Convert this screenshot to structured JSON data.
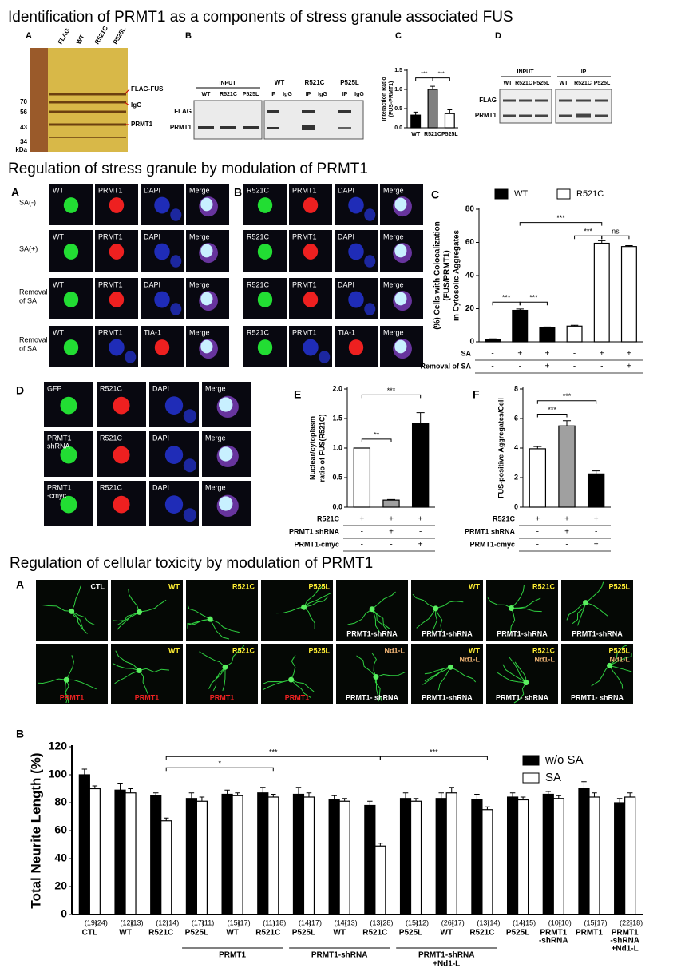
{
  "section1": {
    "title": "Identification of PRMT1 as a components of stress granule associated FUS",
    "A": {
      "label": "A",
      "lanes": [
        "FLAG",
        "WT",
        "R521C",
        "P525L"
      ],
      "markers": [
        "70",
        "56",
        "43",
        "34",
        "kDa"
      ],
      "bands": [
        "FLAG-FUS",
        "IgG",
        "PRMT1"
      ]
    },
    "B": {
      "label": "B",
      "input": "INPUT",
      "input_lanes": [
        "WT",
        "R521C",
        "P525L"
      ],
      "ip_groups": [
        "WT",
        "R521C",
        "P525L"
      ],
      "ip_lanes": [
        "IP",
        "IgG",
        "IP",
        "IgG",
        "IP",
        "IgG"
      ],
      "rows": [
        "FLAG",
        "PRMT1"
      ]
    },
    "D": {
      "label": "D",
      "input": "INPUT",
      "ip": "IP",
      "input_lanes": [
        "WT",
        "R521C",
        "P525L"
      ],
      "ip_lanes": [
        "WT",
        "R521C",
        "P525L"
      ],
      "rows": [
        "FLAG",
        "PRMT1"
      ]
    }
  },
  "section2": {
    "title": "Regulation of stress granule by modulation of PRMT1",
    "A": {
      "label": "A",
      "row_labels": [
        [
          "SA(-)"
        ],
        [
          "SA(+)"
        ],
        [
          "Removal",
          "of SA"
        ],
        [
          "Removal",
          "of SA"
        ]
      ],
      "cells": [
        [
          "WT",
          "PRMT1",
          "DAPI",
          "Merge"
        ],
        [
          "WT",
          "PRMT1",
          "DAPI",
          "Merge"
        ],
        [
          "WT",
          "PRMT1",
          "DAPI",
          "Merge"
        ],
        [
          "WT",
          "PRMT1",
          "TIA-1",
          "Merge"
        ]
      ]
    },
    "B": {
      "label": "B",
      "cells": [
        [
          "R521C",
          "PRMT1",
          "DAPI",
          "Merge"
        ],
        [
          "R521C",
          "PRMT1",
          "DAPI",
          "Merge"
        ],
        [
          "R521C",
          "PRMT1",
          "DAPI",
          "Merge"
        ],
        [
          "R521C",
          "PRMT1",
          "TIA-1",
          "Merge"
        ]
      ]
    },
    "D": {
      "label": "D",
      "cells": [
        [
          [
            "GFP"
          ],
          [
            "R521C"
          ],
          [
            "DAPI"
          ],
          [
            "Merge"
          ]
        ],
        [
          [
            "PRMT1",
            "shRNA"
          ],
          [
            "R521C"
          ],
          [
            "DAPI"
          ],
          [
            "Merge"
          ]
        ],
        [
          [
            "PRMT1",
            "-cmyc"
          ],
          [
            "R521C"
          ],
          [
            "DAPI"
          ],
          [
            "Merge"
          ]
        ]
      ]
    }
  },
  "section3": {
    "title": "Regulation of cellular toxicity by modulation of PRMT1",
    "A": {
      "label": "A",
      "images": [
        {
          "top": [
            {
              "text": "CTL",
              "color": "#ffffff"
            }
          ],
          "bottom": []
        },
        {
          "top": [
            {
              "text": "WT",
              "color": "#ffee33"
            }
          ],
          "bottom": []
        },
        {
          "top": [
            {
              "text": "R521C",
              "color": "#ffee33"
            }
          ],
          "bottom": []
        },
        {
          "top": [
            {
              "text": "P525L",
              "color": "#ffee33"
            }
          ],
          "bottom": []
        },
        {
          "top": [],
          "bottom": [
            {
              "text": "PRMT1-shRNA",
              "color": "#ffffff"
            }
          ]
        },
        {
          "top": [
            {
              "text": "WT",
              "color": "#ffee33"
            }
          ],
          "bottom": [
            {
              "text": "PRMT1-shRNA",
              "color": "#ffffff"
            }
          ]
        },
        {
          "top": [
            {
              "text": "R521C",
              "color": "#ffee33"
            }
          ],
          "bottom": [
            {
              "text": "PRMT1-shRNA",
              "color": "#ffffff"
            }
          ]
        },
        {
          "top": [
            {
              "text": "P525L",
              "color": "#ffee33"
            }
          ],
          "bottom": [
            {
              "text": "PRMT1-shRNA",
              "color": "#ffffff"
            }
          ]
        },
        {
          "top": [],
          "bottom": [
            {
              "text": "PRMT1",
              "color": "#ee2222"
            }
          ]
        },
        {
          "top": [
            {
              "text": "WT",
              "color": "#ffee33"
            }
          ],
          "bottom": [
            {
              "text": "PRMT1",
              "color": "#ee2222"
            }
          ]
        },
        {
          "top": [
            {
              "text": "R521C",
              "color": "#ffee33"
            }
          ],
          "bottom": [
            {
              "text": "PRMT1",
              "color": "#ee2222"
            }
          ]
        },
        {
          "top": [
            {
              "text": "P525L",
              "color": "#ffee33"
            }
          ],
          "bottom": [
            {
              "text": "PRMT1",
              "color": "#ee2222"
            }
          ]
        },
        {
          "top": [
            {
              "text": "Nd1-L",
              "color": "#f5b878"
            }
          ],
          "bottom": [
            {
              "text": "PRMT1- shRNA",
              "color": "#ffffff"
            }
          ]
        },
        {
          "top": [
            {
              "text": "WT",
              "color": "#ffee33"
            },
            {
              "text": "Nd1-L",
              "color": "#f5b878"
            }
          ],
          "bottom": [
            {
              "text": "PRMT1-shRNA",
              "color": "#ffffff"
            }
          ]
        },
        {
          "top": [
            {
              "text": "R521C",
              "color": "#ffee33"
            },
            {
              "text": "Nd1-L",
              "color": "#f5b878"
            }
          ],
          "bottom": [
            {
              "text": "PRMT1- shRNA",
              "color": "#ffffff"
            }
          ]
        },
        {
          "top": [
            {
              "text": "P525L",
              "color": "#ffee33"
            },
            {
              "text": "Nd1-L",
              "color": "#f5b878"
            }
          ],
          "bottom": [
            {
              "text": "PRMT1- shRNA",
              "color": "#ffffff"
            }
          ]
        }
      ]
    }
  },
  "chart_data": [
    {
      "type": "bar",
      "panel": "C",
      "ylabel": [
        "Interaction Ratio",
        "(FUS-PRMT1)"
      ],
      "categories": [
        "WT",
        "R521C",
        "P525L"
      ],
      "series": [
        {
          "colors": [
            "#000000",
            "#808080",
            "#ffffff"
          ],
          "values": [
            0.33,
            1.0,
            0.37
          ],
          "errors": [
            0.08,
            0.08,
            0.1
          ]
        }
      ],
      "ylim": [
        0,
        1.5
      ],
      "yticks": [
        {
          "value": 0,
          "label": "0.0"
        },
        0.5,
        {
          "value": 1,
          "label": "1.0"
        },
        1.5
      ],
      "annotations": [
        "***",
        "***"
      ]
    },
    {
      "type": "bar",
      "panel": "C",
      "ylabel": [
        "(%) Cells with Colocalization",
        "(FUS/PRMT1)",
        "in Cytosolic Aggregates"
      ],
      "series": [
        {
          "name": "WT",
          "color": "#000000",
          "values": [
            1.5,
            19,
            8.5,
            null,
            null,
            null
          ],
          "errors": [
            0.3,
            0.8,
            0.5,
            null,
            null,
            null
          ]
        },
        {
          "name": "R521C",
          "color": "#ffffff",
          "values": [
            null,
            null,
            null,
            9.5,
            59.5,
            57.5
          ],
          "errors": [
            null,
            null,
            null,
            0.5,
            1.5,
            0.6
          ]
        }
      ],
      "conditions": [
        {
          "label": "SA",
          "marks": [
            "-",
            "+",
            "+",
            "-",
            "+",
            "+"
          ]
        },
        {
          "label": "Removal of SA",
          "marks": [
            "-",
            "-",
            "+",
            "-",
            "-",
            "+"
          ]
        }
      ],
      "ylim": [
        0,
        80
      ],
      "yticks": [
        0,
        20,
        40,
        60,
        80
      ],
      "legend": "top",
      "annotations": [
        "***",
        "***",
        "***",
        "***",
        "ns"
      ]
    },
    {
      "type": "bar",
      "panel": "E",
      "ylabel": [
        "Nuclear/cytoplasm",
        "ratio of FUS(R521C)"
      ],
      "series": [
        {
          "colors": [
            "#ffffff",
            "#a0a0a0",
            "#000000"
          ],
          "values": [
            1.0,
            0.12,
            1.42
          ],
          "errors": [
            0,
            0.01,
            0.18
          ]
        }
      ],
      "conditions": [
        {
          "label": "R521C",
          "marks": [
            "+",
            "+",
            "+"
          ]
        },
        {
          "label": "PRMT1 shRNA",
          "marks": [
            "-",
            "+",
            "-"
          ]
        },
        {
          "label": "PRMT1-cmyc",
          "marks": [
            "-",
            "-",
            "+"
          ]
        }
      ],
      "ylim": [
        0,
        2
      ],
      "yticks": [
        {
          "value": 0,
          "label": "0.0"
        },
        0.5,
        {
          "value": 1,
          "label": "1.0"
        },
        1.5,
        {
          "value": 2,
          "label": "2.0"
        }
      ],
      "annotations": [
        "**",
        "***"
      ]
    },
    {
      "type": "bar",
      "panel": "F",
      "ylabel": [
        "FUS-positive Aggregates/Cell"
      ],
      "series": [
        {
          "colors": [
            "#ffffff",
            "#a0a0a0",
            "#000000"
          ],
          "values": [
            3.95,
            5.5,
            2.25
          ],
          "errors": [
            0.15,
            0.35,
            0.2
          ]
        }
      ],
      "conditions": [
        {
          "label": "R521C",
          "marks": [
            "+",
            "+",
            "+"
          ]
        },
        {
          "label": "PRMT1 shRNA",
          "marks": [
            "-",
            "+",
            "-"
          ]
        },
        {
          "label": "PRMT1-cmyc",
          "marks": [
            "-",
            "-",
            "+"
          ]
        }
      ],
      "ylim": [
        0,
        8
      ],
      "yticks": [
        0,
        2,
        4,
        6,
        8
      ],
      "annotations": [
        "***",
        "***"
      ]
    },
    {
      "type": "bar",
      "panel": "B",
      "ylabel": [
        "Total Neurite Length (%)"
      ],
      "categories": [
        "CTL",
        "WT",
        "R521C",
        "P525L",
        "WT",
        "R521C",
        "P525L",
        "WT",
        "R521C",
        "P525L",
        "WT",
        "R521C",
        "P525L",
        [
          "PRMT1",
          "-shRNA"
        ],
        "PRMT1",
        [
          "PRMT1",
          "-shRNA",
          "+Nd1-L"
        ]
      ],
      "groups": [
        "PRMT1",
        "PRMT1-shRNA",
        [
          "PRMT1-shRNA",
          "+Nd1-L"
        ]
      ],
      "series": [
        {
          "name": "w/o SA",
          "color": "#000000",
          "values": [
            100,
            89,
            85,
            83,
            86,
            87,
            86,
            82,
            78,
            83,
            83,
            82,
            84,
            86,
            90,
            80
          ],
          "errors": [
            4,
            5,
            2,
            4,
            3,
            4,
            5,
            3,
            3,
            4,
            4,
            4,
            3,
            2,
            5,
            3
          ],
          "n_labels": [
            "(19)",
            "(12)",
            "(12)",
            "(17)",
            "(15)",
            "(11)",
            "(14)",
            "(14)",
            "(13)",
            "(15)",
            "(26)",
            "(13)",
            "(14)",
            "(10)",
            "(15)",
            "(22)"
          ]
        },
        {
          "name": "SA",
          "color": "#ffffff",
          "values": [
            90,
            87,
            67,
            81,
            85,
            84,
            84,
            81,
            49,
            81,
            87,
            75,
            82,
            83,
            84,
            84
          ],
          "errors": [
            2,
            3,
            2,
            3,
            2,
            2,
            3,
            2,
            2,
            2,
            4,
            2,
            2,
            2,
            3,
            3
          ],
          "n_labels": [
            "(24)",
            "(13)",
            "(14)",
            "(11)",
            "(17)",
            "(18)",
            "(17)",
            "(13)",
            "(28)",
            "(12)",
            "(17)",
            "(14)",
            "(15)",
            "(10)",
            "(17)",
            "(18)"
          ]
        }
      ],
      "ylim": [
        0,
        120
      ],
      "yticks": [
        0,
        20,
        40,
        60,
        80,
        100,
        120
      ],
      "legend": "top-right",
      "annotations": [
        "***",
        "*",
        "***"
      ]
    }
  ]
}
